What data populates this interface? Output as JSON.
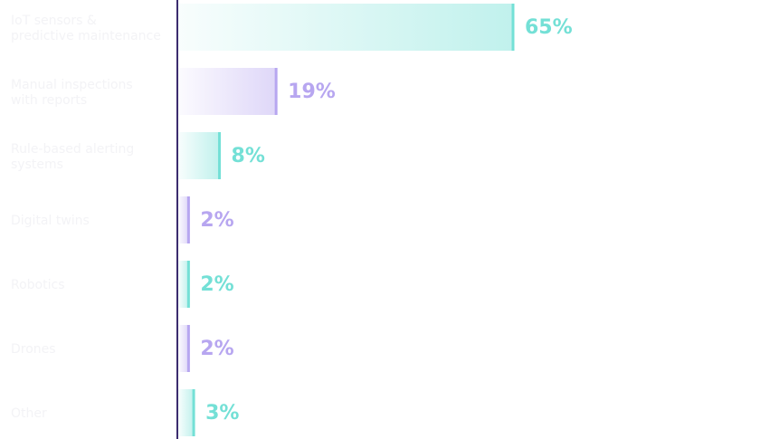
{
  "chart_data": {
    "type": "bar",
    "orientation": "horizontal",
    "categories": [
      "IoT sensors & predictive maintenance",
      "Manual inspections with reports",
      "Rule-based alerting systems",
      "Digital twins",
      "Robotics",
      "Drones",
      "Other"
    ],
    "values": [
      65,
      19,
      8,
      2,
      2,
      2,
      3
    ],
    "value_labels": [
      "65%",
      "19%",
      "8%",
      "2%",
      "2%",
      "2%",
      "3%"
    ],
    "colors": [
      "#74e0d6",
      "#b7a6f0",
      "#74e0d6",
      "#b7a6f0",
      "#74e0d6",
      "#b7a6f0",
      "#74e0d6"
    ],
    "xlim": [
      0,
      65
    ]
  }
}
